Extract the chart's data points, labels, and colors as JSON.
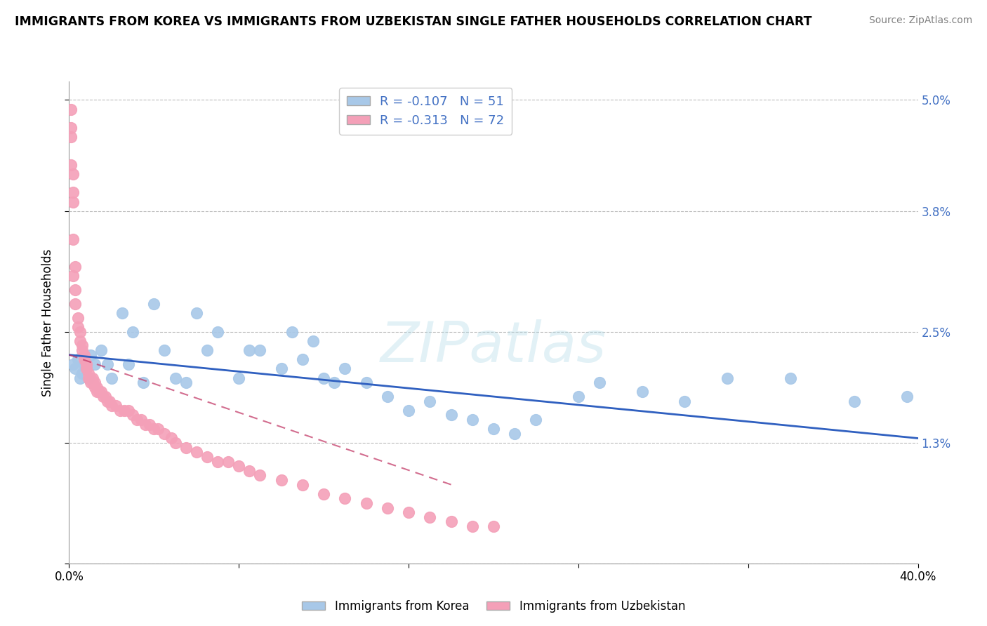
{
  "title": "IMMIGRANTS FROM KOREA VS IMMIGRANTS FROM UZBEKISTAN SINGLE FATHER HOUSEHOLDS CORRELATION CHART",
  "source": "Source: ZipAtlas.com",
  "ylabel": "Single Father Households",
  "korea_R": -0.107,
  "korea_N": 51,
  "uzbekistan_R": -0.313,
  "uzbekistan_N": 72,
  "korea_color": "#a8c8e8",
  "uzbekistan_color": "#f4a0b8",
  "korea_line_color": "#3060c0",
  "uzbekistan_line_color": "#c03060",
  "uzbekistan_line_dash": [
    6,
    4
  ],
  "watermark_text": "ZIPatlas",
  "background_color": "#ffffff",
  "xlim": [
    0.0,
    0.4
  ],
  "ylim": [
    0.0,
    0.052
  ],
  "x_ticks": [
    0.0,
    0.08,
    0.16,
    0.24,
    0.32,
    0.4
  ],
  "x_tick_labels": [
    "0.0%",
    "",
    "",
    "",
    "",
    "40.0%"
  ],
  "y_ticks": [
    0.0,
    0.013,
    0.025,
    0.038,
    0.05
  ],
  "y_tick_labels": [
    "",
    "1.3%",
    "2.5%",
    "3.8%",
    "5.0%"
  ],
  "korea_x": [
    0.002,
    0.003,
    0.004,
    0.005,
    0.006,
    0.007,
    0.008,
    0.009,
    0.01,
    0.012,
    0.015,
    0.018,
    0.02,
    0.025,
    0.028,
    0.03,
    0.035,
    0.04,
    0.045,
    0.05,
    0.055,
    0.06,
    0.065,
    0.07,
    0.08,
    0.085,
    0.09,
    0.1,
    0.105,
    0.11,
    0.115,
    0.12,
    0.125,
    0.13,
    0.14,
    0.15,
    0.16,
    0.17,
    0.18,
    0.19,
    0.2,
    0.21,
    0.22,
    0.24,
    0.25,
    0.27,
    0.29,
    0.31,
    0.34,
    0.37,
    0.395
  ],
  "korea_y": [
    0.0215,
    0.021,
    0.022,
    0.02,
    0.0205,
    0.0215,
    0.021,
    0.02,
    0.0225,
    0.0215,
    0.023,
    0.0215,
    0.02,
    0.027,
    0.0215,
    0.025,
    0.0195,
    0.028,
    0.023,
    0.02,
    0.0195,
    0.027,
    0.023,
    0.025,
    0.02,
    0.023,
    0.023,
    0.021,
    0.025,
    0.022,
    0.024,
    0.02,
    0.0195,
    0.021,
    0.0195,
    0.018,
    0.0165,
    0.0175,
    0.016,
    0.0155,
    0.0145,
    0.014,
    0.0155,
    0.018,
    0.0195,
    0.0185,
    0.0175,
    0.02,
    0.02,
    0.0175,
    0.018
  ],
  "uzbekistan_x": [
    0.001,
    0.001,
    0.002,
    0.002,
    0.002,
    0.003,
    0.003,
    0.003,
    0.004,
    0.004,
    0.005,
    0.005,
    0.006,
    0.006,
    0.007,
    0.007,
    0.008,
    0.008,
    0.009,
    0.009,
    0.01,
    0.01,
    0.011,
    0.011,
    0.012,
    0.012,
    0.013,
    0.013,
    0.014,
    0.015,
    0.016,
    0.017,
    0.018,
    0.019,
    0.02,
    0.022,
    0.024,
    0.026,
    0.028,
    0.03,
    0.032,
    0.034,
    0.036,
    0.038,
    0.04,
    0.042,
    0.045,
    0.048,
    0.05,
    0.055,
    0.06,
    0.065,
    0.07,
    0.075,
    0.08,
    0.085,
    0.09,
    0.1,
    0.11,
    0.12,
    0.13,
    0.14,
    0.15,
    0.16,
    0.17,
    0.18,
    0.19,
    0.2,
    0.001,
    0.001,
    0.002,
    0.002
  ],
  "uzbekistan_y": [
    0.043,
    0.046,
    0.039,
    0.035,
    0.031,
    0.032,
    0.0295,
    0.028,
    0.0265,
    0.0255,
    0.025,
    0.024,
    0.0235,
    0.023,
    0.0225,
    0.022,
    0.0215,
    0.021,
    0.0205,
    0.02,
    0.02,
    0.0195,
    0.02,
    0.0195,
    0.0195,
    0.019,
    0.019,
    0.0185,
    0.0185,
    0.0185,
    0.018,
    0.018,
    0.0175,
    0.0175,
    0.017,
    0.017,
    0.0165,
    0.0165,
    0.0165,
    0.016,
    0.0155,
    0.0155,
    0.015,
    0.015,
    0.0145,
    0.0145,
    0.014,
    0.0135,
    0.013,
    0.0125,
    0.012,
    0.0115,
    0.011,
    0.011,
    0.0105,
    0.01,
    0.0095,
    0.009,
    0.0085,
    0.0075,
    0.007,
    0.0065,
    0.006,
    0.0055,
    0.005,
    0.0045,
    0.004,
    0.004,
    0.049,
    0.047,
    0.042,
    0.04
  ],
  "korea_trend_x": [
    0.0,
    0.4
  ],
  "korea_trend_y": [
    0.0225,
    0.0135
  ],
  "uzbekistan_trend_x": [
    0.0,
    0.18
  ],
  "uzbekistan_trend_y": [
    0.0225,
    0.0085
  ]
}
